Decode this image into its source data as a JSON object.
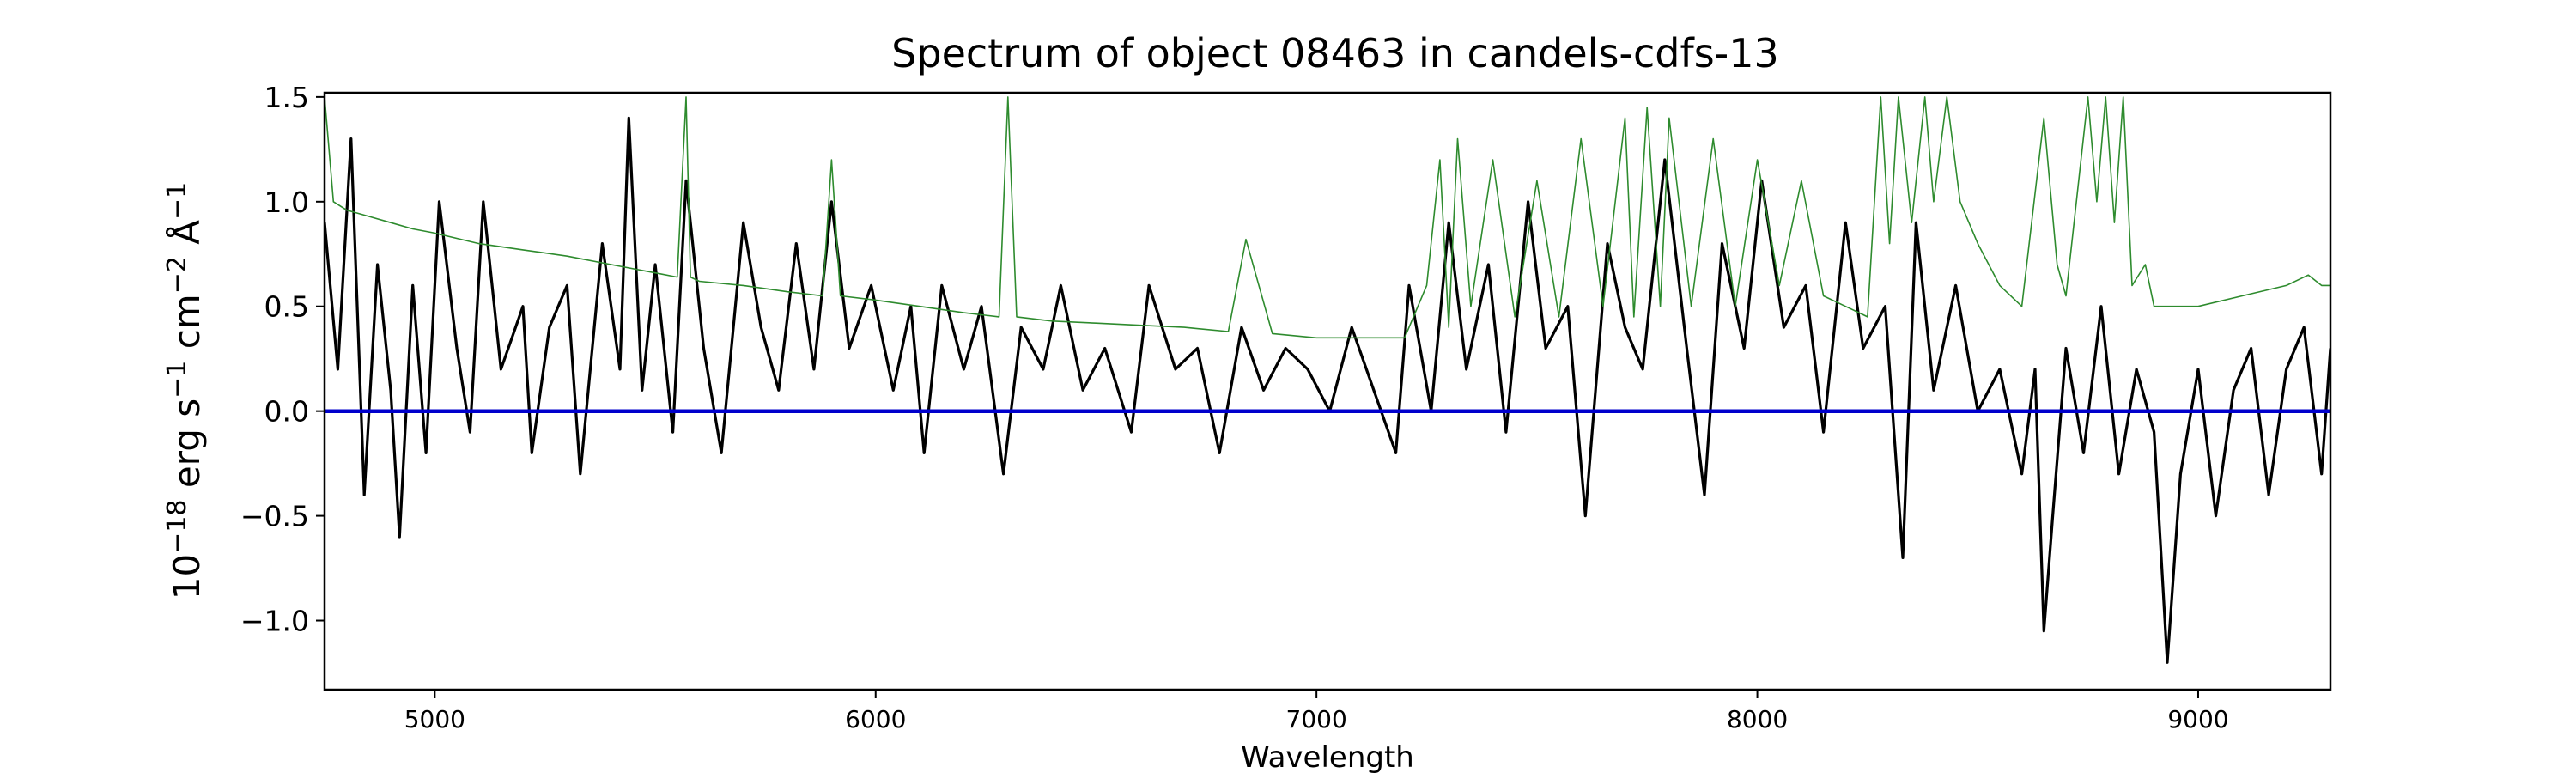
{
  "chart_data": {
    "type": "line",
    "title": "Spectrum of object 08463 in candels-cdfs-13",
    "xlabel": "Wavelength",
    "ylabel": {
      "base": "10",
      "exp1": "−18",
      "mid1": " erg s",
      "exp2": "−1",
      "mid2": " cm",
      "exp3": "−2",
      "mid3": " Å",
      "exp4": "−1"
    },
    "xlim": [
      4750,
      9300
    ],
    "ylim": [
      -1.33,
      1.52
    ],
    "x_ticks": [
      5000,
      6000,
      7000,
      8000,
      9000
    ],
    "x_tick_labels": [
      "5000",
      "6000",
      "7000",
      "8000",
      "9000"
    ],
    "y_ticks": [
      -1.0,
      -0.5,
      0.0,
      0.5,
      1.0,
      1.5
    ],
    "y_tick_labels": [
      "−1.0",
      "−0.5",
      "0.0",
      "0.5",
      "1.0",
      "1.5"
    ],
    "grid": false,
    "legend": "none",
    "colors": {
      "flux": "#000000",
      "error": "#2e8b2e",
      "zero": "#0000cc"
    },
    "series": [
      {
        "color": "#000000",
        "x": [
          4750,
          4780,
          4810,
          4840,
          4870,
          4900,
          4920,
          4950,
          4980,
          5010,
          5050,
          5080,
          5110,
          5150,
          5200,
          5220,
          5260,
          5300,
          5330,
          5380,
          5420,
          5440,
          5470,
          5500,
          5540,
          5570,
          5610,
          5650,
          5700,
          5740,
          5780,
          5820,
          5860,
          5900,
          5940,
          5990,
          6040,
          6080,
          6110,
          6150,
          6200,
          6240,
          6290,
          6330,
          6380,
          6420,
          6470,
          6520,
          6580,
          6620,
          6680,
          6730,
          6780,
          6830,
          6880,
          6930,
          6980,
          7030,
          7080,
          7130,
          7180,
          7210,
          7260,
          7300,
          7340,
          7390,
          7430,
          7480,
          7520,
          7570,
          7610,
          7660,
          7700,
          7740,
          7790,
          7840,
          7880,
          7920,
          7970,
          8010,
          8060,
          8110,
          8150,
          8200,
          8240,
          8290,
          8330,
          8360,
          8400,
          8450,
          8500,
          8550,
          8600,
          8630,
          8650,
          8670,
          8700,
          8740,
          8780,
          8820,
          8860,
          8900,
          8930,
          8960,
          9000,
          9040,
          9080,
          9120,
          9160,
          9200,
          9240,
          9280,
          9300
        ],
        "y": [
          0.9,
          0.2,
          1.3,
          -0.4,
          0.7,
          0.1,
          -0.6,
          0.6,
          -0.2,
          1.0,
          0.3,
          -0.1,
          1.0,
          0.2,
          0.5,
          -0.2,
          0.4,
          0.6,
          -0.3,
          0.8,
          0.2,
          1.4,
          0.1,
          0.7,
          -0.1,
          1.1,
          0.3,
          -0.2,
          0.9,
          0.4,
          0.1,
          0.8,
          0.2,
          1.0,
          0.3,
          0.6,
          0.1,
          0.5,
          -0.2,
          0.6,
          0.2,
          0.5,
          -0.3,
          0.4,
          0.2,
          0.6,
          0.1,
          0.3,
          -0.1,
          0.6,
          0.2,
          0.3,
          -0.2,
          0.4,
          0.1,
          0.3,
          0.2,
          0.0,
          0.4,
          0.1,
          -0.2,
          0.6,
          0.0,
          0.9,
          0.2,
          0.7,
          -0.1,
          1.0,
          0.3,
          0.5,
          -0.5,
          0.8,
          0.4,
          0.2,
          1.2,
          0.3,
          -0.4,
          0.8,
          0.3,
          1.1,
          0.4,
          0.6,
          -0.1,
          0.9,
          0.3,
          0.5,
          -0.7,
          0.9,
          0.1,
          0.6,
          0.0,
          0.2,
          -0.3,
          0.2,
          -1.05,
          -0.5,
          0.3,
          -0.2,
          0.5,
          -0.3,
          0.2,
          -0.1,
          -1.2,
          -0.3,
          0.2,
          -0.5,
          0.1,
          0.3,
          -0.4,
          0.2,
          0.4,
          -0.3,
          0.3
        ]
      },
      {
        "color": "#2e8b2e",
        "x": [
          4750,
          4770,
          4800,
          4850,
          4900,
          4950,
          5000,
          5100,
          5200,
          5300,
          5400,
          5500,
          5550,
          5570,
          5580,
          5600,
          5700,
          5800,
          5880,
          5900,
          5920,
          6000,
          6100,
          6200,
          6280,
          6300,
          6320,
          6400,
          6500,
          6600,
          6700,
          6800,
          6840,
          6900,
          7000,
          7100,
          7200,
          7250,
          7280,
          7300,
          7320,
          7350,
          7400,
          7450,
          7500,
          7550,
          7600,
          7650,
          7700,
          7720,
          7750,
          7780,
          7800,
          7850,
          7900,
          7950,
          8000,
          8050,
          8100,
          8150,
          8200,
          8250,
          8280,
          8300,
          8320,
          8350,
          8380,
          8400,
          8430,
          8460,
          8500,
          8550,
          8600,
          8650,
          8680,
          8700,
          8750,
          8770,
          8790,
          8810,
          8830,
          8850,
          8880,
          8900,
          9000,
          9100,
          9200,
          9250,
          9280,
          9300
        ],
        "y": [
          1.5,
          1.0,
          0.96,
          0.93,
          0.9,
          0.87,
          0.85,
          0.8,
          0.77,
          0.74,
          0.7,
          0.66,
          0.64,
          1.5,
          0.64,
          0.62,
          0.6,
          0.57,
          0.55,
          1.2,
          0.55,
          0.53,
          0.5,
          0.47,
          0.45,
          1.5,
          0.45,
          0.43,
          0.42,
          0.41,
          0.4,
          0.38,
          0.82,
          0.37,
          0.35,
          0.35,
          0.35,
          0.6,
          1.2,
          0.4,
          1.3,
          0.5,
          1.2,
          0.45,
          1.1,
          0.45,
          1.3,
          0.5,
          1.4,
          0.45,
          1.45,
          0.5,
          1.4,
          0.5,
          1.3,
          0.5,
          1.2,
          0.6,
          1.1,
          0.55,
          0.5,
          0.45,
          1.5,
          0.8,
          1.5,
          0.9,
          1.5,
          1.0,
          1.5,
          1.0,
          0.8,
          0.6,
          0.5,
          1.4,
          0.7,
          0.55,
          1.5,
          1.0,
          1.5,
          0.9,
          1.5,
          0.6,
          0.7,
          0.5,
          0.5,
          0.55,
          0.6,
          0.65,
          0.6,
          0.6
        ]
      },
      {
        "color": "#0000cc",
        "x": [
          4750,
          9300
        ],
        "y": [
          0.0,
          0.0
        ]
      }
    ]
  }
}
